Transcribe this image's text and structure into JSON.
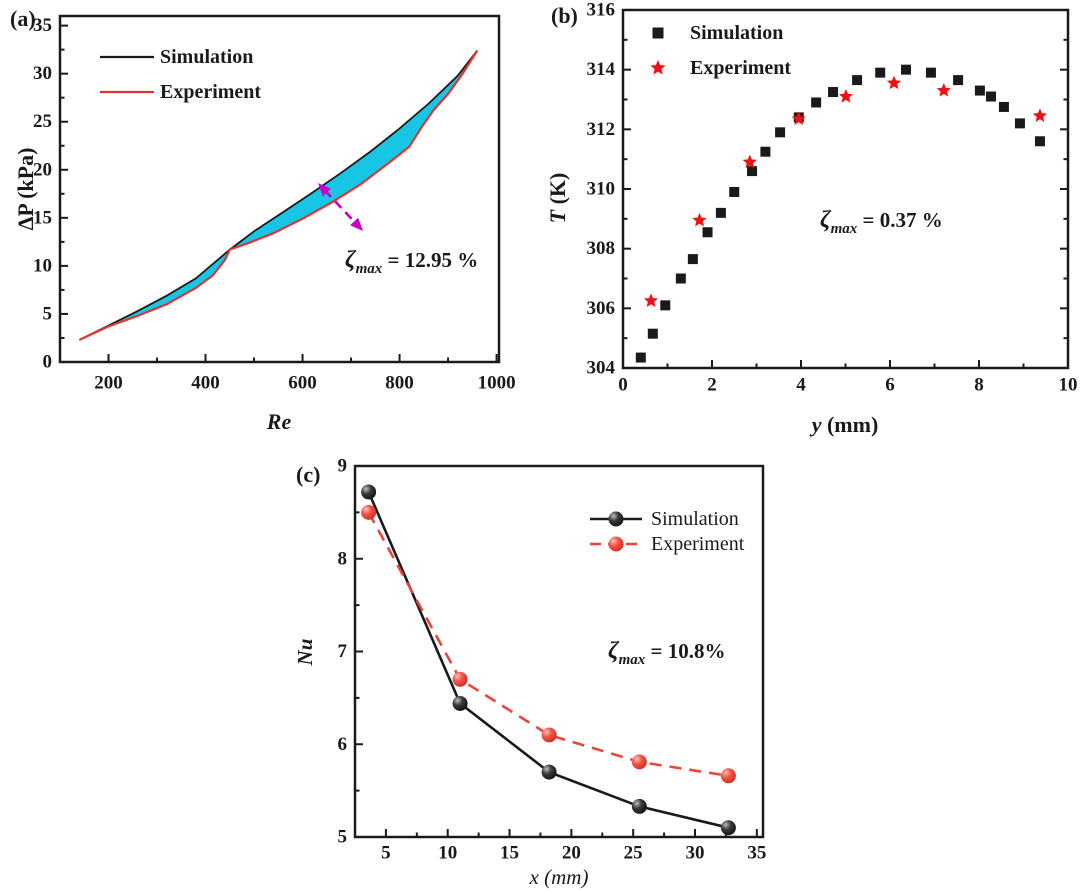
{
  "colors": {
    "simulation": "#1a1a1a",
    "experiment": "#e0352f",
    "experiment_star": "#ee1111",
    "experiment_ball": "#e8463c",
    "fill_between": "#16c6e4",
    "arrow": "#c800c8",
    "axis": "#1a1a1a"
  },
  "chart_data": [
    {
      "panel_label": "(a)",
      "type": "line",
      "xlabel": "Re",
      "ylabel": "ΔP (kPa)",
      "xlim": [
        100,
        1005
      ],
      "ylim": [
        0,
        36
      ],
      "xticks": [
        200,
        400,
        600,
        800,
        1000
      ],
      "yticks": [
        0,
        5,
        10,
        15,
        20,
        25,
        30,
        35
      ],
      "grid": false,
      "legend_position": "upper-left",
      "legend": [
        "Simulation",
        "Experiment"
      ],
      "annotation": {
        "symbol": "ζ",
        "subscript": "max",
        "value": "= 12.95 %"
      },
      "fill_between": true,
      "series": [
        {
          "name": "Simulation",
          "style": "solid",
          "x": [
            140,
            200,
            260,
            320,
            380,
            450,
            500,
            560,
            620,
            680,
            740,
            800,
            860,
            920,
            960
          ],
          "y": [
            2.3,
            3.8,
            5.3,
            6.9,
            8.7,
            11.7,
            13.6,
            15.6,
            17.6,
            19.7,
            21.9,
            24.3,
            26.9,
            29.8,
            32.4
          ]
        },
        {
          "name": "Experiment",
          "style": "solid",
          "x": [
            140,
            200,
            260,
            320,
            380,
            415,
            440,
            450,
            490,
            540,
            600,
            660,
            720,
            780,
            820,
            845,
            870,
            900,
            930,
            960
          ],
          "y": [
            2.3,
            3.7,
            4.8,
            6.0,
            7.7,
            9.0,
            10.6,
            11.7,
            12.4,
            13.4,
            14.9,
            16.6,
            18.5,
            20.8,
            22.4,
            24.4,
            26.2,
            27.9,
            30.0,
            32.4
          ]
        }
      ]
    },
    {
      "panel_label": "(b)",
      "type": "scatter",
      "xlabel": "y (mm)",
      "ylabel": "T (K)",
      "xlim": [
        0,
        10
      ],
      "ylim": [
        304,
        316
      ],
      "xticks": [
        0,
        2,
        4,
        6,
        8,
        10
      ],
      "yticks": [
        304,
        306,
        308,
        310,
        312,
        314,
        316
      ],
      "grid": false,
      "legend_position": "upper-left",
      "legend": [
        "Simulation",
        "Experiment"
      ],
      "annotation": {
        "symbol": "ζ",
        "subscript": "max",
        "value": "= 0.37 %"
      },
      "series": [
        {
          "name": "Simulation",
          "marker": "square",
          "x": [
            0.4,
            0.67,
            0.95,
            1.3,
            1.57,
            1.9,
            2.2,
            2.5,
            2.9,
            3.2,
            3.53,
            3.95,
            4.34,
            4.72,
            5.26,
            5.78,
            6.36,
            6.92,
            7.53,
            8.02,
            8.27,
            8.56,
            8.92,
            9.37
          ],
          "y": [
            304.35,
            305.15,
            306.1,
            307.0,
            307.65,
            308.55,
            309.2,
            309.9,
            310.6,
            311.25,
            311.9,
            312.4,
            312.9,
            313.25,
            313.65,
            313.9,
            314.0,
            313.9,
            313.65,
            313.3,
            313.1,
            312.75,
            312.2,
            311.6
          ]
        },
        {
          "name": "Experiment",
          "marker": "star",
          "x": [
            0.63,
            1.72,
            2.85,
            3.95,
            5.01,
            6.09,
            7.21,
            9.37
          ],
          "y": [
            306.25,
            308.95,
            310.9,
            312.35,
            313.1,
            313.55,
            313.3,
            312.45
          ]
        }
      ]
    },
    {
      "panel_label": "(c)",
      "type": "line",
      "xlabel": "x (mm)",
      "ylabel": "Nu",
      "xlim": [
        2.5,
        35.5
      ],
      "ylim": [
        5,
        9
      ],
      "xticks": [
        5,
        10,
        15,
        20,
        25,
        30,
        35
      ],
      "yticks": [
        5,
        6,
        7,
        8,
        9
      ],
      "grid": false,
      "legend_position": "upper-right",
      "legend": [
        "Simulation",
        "Experiment"
      ],
      "annotation": {
        "symbol": "ζ",
        "subscript": "max",
        "value": "= 10.8%"
      },
      "series": [
        {
          "name": "Simulation",
          "marker": "ball",
          "style": "solid",
          "x": [
            3.6,
            11,
            18.2,
            25.5,
            32.7
          ],
          "y": [
            8.72,
            6.44,
            5.7,
            5.33,
            5.1
          ]
        },
        {
          "name": "Experiment",
          "marker": "ball",
          "style": "dashed",
          "x": [
            3.6,
            11,
            18.2,
            25.5,
            32.7
          ],
          "y": [
            8.5,
            6.7,
            6.1,
            5.81,
            5.66
          ]
        }
      ]
    }
  ]
}
